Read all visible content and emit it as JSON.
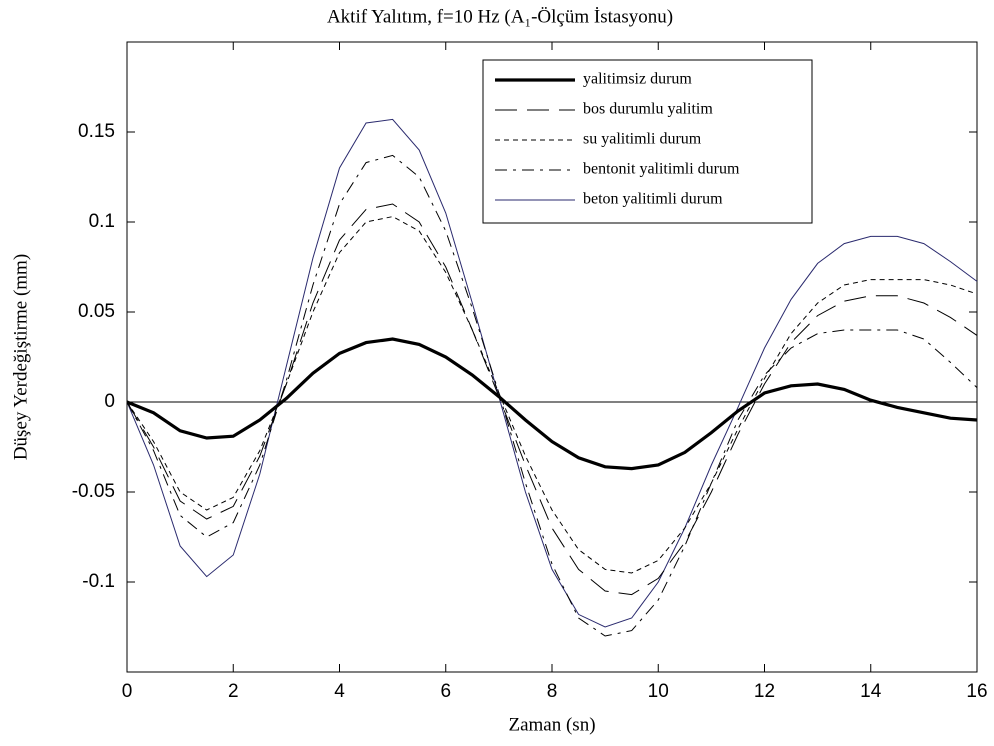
{
  "chart_data": {
    "type": "line",
    "title": "Aktif Yalıtım, f=10 Hz (A₁-Ölçüm İstasyonu)",
    "xlabel": "Zaman   (sn)",
    "ylabel": "Düşey Yerdeğiştirme (mm)",
    "xlim": [
      0,
      16
    ],
    "ylim": [
      -0.15,
      0.2
    ],
    "xticks": [
      0,
      2,
      4,
      6,
      8,
      10,
      12,
      14,
      16
    ],
    "yticks": [
      -0.1,
      -0.05,
      0,
      0.05,
      0.1,
      0.15
    ],
    "legend": "top-right",
    "x": [
      0,
      0.5,
      1,
      1.5,
      2,
      2.5,
      3,
      3.5,
      4,
      4.5,
      5,
      5.5,
      6,
      6.5,
      7,
      7.5,
      8,
      8.5,
      9,
      9.5,
      10,
      10.5,
      11,
      11.5,
      12,
      12.5,
      13,
      13.5,
      14,
      14.5,
      15,
      15.5,
      16
    ],
    "series": [
      {
        "name": "yalitimsiz durum",
        "color": "#000000",
        "line_style": "thick",
        "values": [
          0,
          -0.006,
          -0.016,
          -0.02,
          -0.019,
          -0.01,
          0.002,
          0.016,
          0.027,
          0.033,
          0.035,
          0.032,
          0.025,
          0.015,
          0.003,
          -0.01,
          -0.022,
          -0.031,
          -0.036,
          -0.037,
          -0.035,
          -0.028,
          -0.017,
          -0.005,
          0.005,
          0.009,
          0.01,
          0.007,
          0.001,
          -0.003,
          -0.006,
          -0.009,
          -0.01
        ]
      },
      {
        "name": "bos durumlu yalitim",
        "color": "#000000",
        "line_style": "long-dash",
        "values": [
          0,
          -0.025,
          -0.055,
          -0.065,
          -0.058,
          -0.03,
          0.01,
          0.055,
          0.09,
          0.107,
          0.11,
          0.1,
          0.075,
          0.04,
          0.003,
          -0.035,
          -0.07,
          -0.093,
          -0.105,
          -0.107,
          -0.098,
          -0.078,
          -0.05,
          -0.018,
          0.01,
          0.033,
          0.048,
          0.056,
          0.059,
          0.059,
          0.055,
          0.047,
          0.037
        ]
      },
      {
        "name": "su yalitimli durum",
        "color": "#000000",
        "line_style": "short-dash",
        "values": [
          0,
          -0.022,
          -0.05,
          -0.06,
          -0.053,
          -0.027,
          0.01,
          0.05,
          0.083,
          0.1,
          0.103,
          0.095,
          0.072,
          0.04,
          0.005,
          -0.03,
          -0.06,
          -0.082,
          -0.093,
          -0.095,
          -0.088,
          -0.07,
          -0.045,
          -0.015,
          0.013,
          0.038,
          0.055,
          0.065,
          0.068,
          0.068,
          0.068,
          0.065,
          0.06
        ]
      },
      {
        "name": "bentonit yalitimli durum",
        "color": "#000000",
        "line_style": "dash-dot",
        "values": [
          0,
          -0.027,
          -0.063,
          -0.075,
          -0.067,
          -0.035,
          0.012,
          0.065,
          0.11,
          0.133,
          0.137,
          0.125,
          0.095,
          0.052,
          0.005,
          -0.045,
          -0.09,
          -0.12,
          -0.13,
          -0.127,
          -0.11,
          -0.08,
          -0.045,
          -0.01,
          0.015,
          0.03,
          0.038,
          0.04,
          0.04,
          0.04,
          0.035,
          0.022,
          0.008
        ]
      },
      {
        "name": "beton yalitimli durum",
        "color": "#2a2a6e",
        "line_style": "solid",
        "values": [
          0,
          -0.035,
          -0.08,
          -0.097,
          -0.085,
          -0.04,
          0.02,
          0.08,
          0.13,
          0.155,
          0.157,
          0.14,
          0.105,
          0.055,
          0.003,
          -0.05,
          -0.093,
          -0.118,
          -0.125,
          -0.12,
          -0.1,
          -0.07,
          -0.035,
          -0.003,
          0.03,
          0.057,
          0.077,
          0.088,
          0.092,
          0.092,
          0.088,
          0.078,
          0.067
        ]
      }
    ]
  }
}
